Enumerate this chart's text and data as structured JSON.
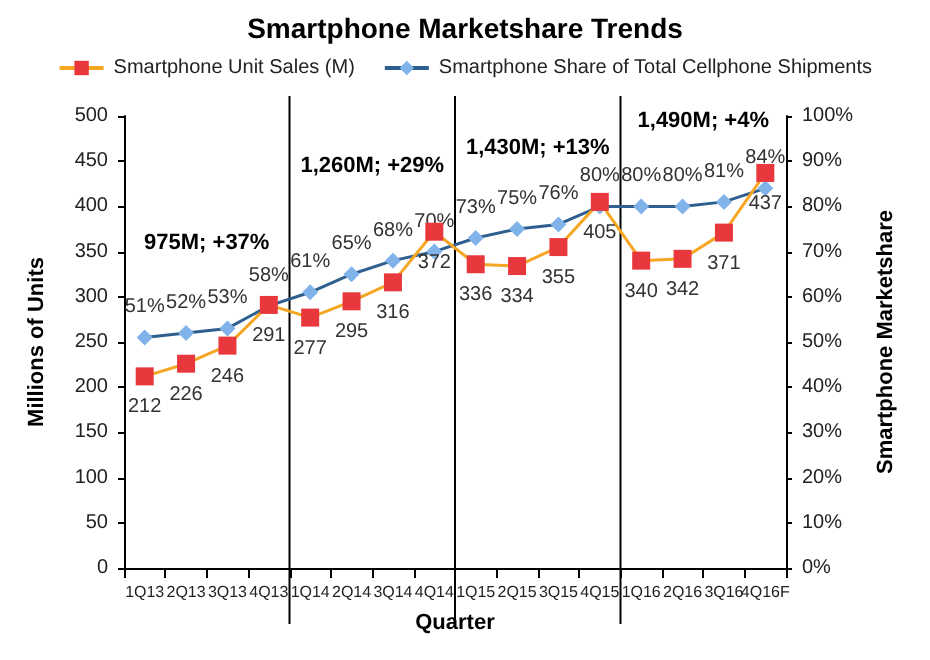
{
  "chart_data": {
    "type": "line",
    "title": "Smartphone Marketshare Trends",
    "xlabel": "Quarter",
    "ylabel": "Millions of Units",
    "y2label": "Smartphone Marketshare",
    "categories": [
      "1Q13",
      "2Q13",
      "3Q13",
      "4Q13",
      "1Q14",
      "2Q14",
      "3Q14",
      "4Q14",
      "1Q15",
      "2Q15",
      "3Q15",
      "4Q15",
      "1Q16",
      "2Q16",
      "3Q16",
      "4Q16F"
    ],
    "series": [
      {
        "name": "Smartphone Unit Sales (M)",
        "color": "#f5a623",
        "marker": "square",
        "values": [
          212,
          226,
          246,
          291,
          277,
          295,
          316,
          372,
          336,
          334,
          355,
          405,
          340,
          342,
          371,
          437
        ]
      },
      {
        "name": "Smartphone Share of Total Cellphone Shipments",
        "color": "#2f5f8f",
        "marker": "diamond",
        "axis": "y2",
        "values": [
          51,
          52,
          53,
          58,
          61,
          65,
          68,
          70,
          73,
          75,
          76,
          80,
          80,
          80,
          81,
          84
        ],
        "value_labels": [
          "51%",
          "52%",
          "53%",
          "58%",
          "61%",
          "65%",
          "68%",
          "70%",
          "73%",
          "75%",
          "76%",
          "80%",
          "80%",
          "80%",
          "81%",
          "84%"
        ]
      }
    ],
    "data_labels": true,
    "ylim": [
      0,
      500
    ],
    "yticks": [
      0,
      50,
      100,
      150,
      200,
      250,
      300,
      350,
      400,
      450,
      500
    ],
    "y2lim": [
      0,
      100
    ],
    "y2ticks": [
      {
        "value": 0,
        "label": "0%"
      },
      {
        "value": 10,
        "label": "10%"
      },
      {
        "value": 20,
        "label": "20%"
      },
      {
        "value": 30,
        "label": "30%"
      },
      {
        "value": 40,
        "label": "40%"
      },
      {
        "value": 50,
        "label": "50%"
      },
      {
        "value": 60,
        "label": "60%"
      },
      {
        "value": 70,
        "label": "70%"
      },
      {
        "value": 80,
        "label": "80%"
      },
      {
        "value": 90,
        "label": "90%"
      },
      {
        "value": 100,
        "label": "100%"
      }
    ],
    "annotations": [
      "975M; +37%",
      "1,260M; +29%",
      "1,430M; +13%",
      "1,490M; +4%"
    ],
    "grid": false,
    "legend": "top"
  }
}
